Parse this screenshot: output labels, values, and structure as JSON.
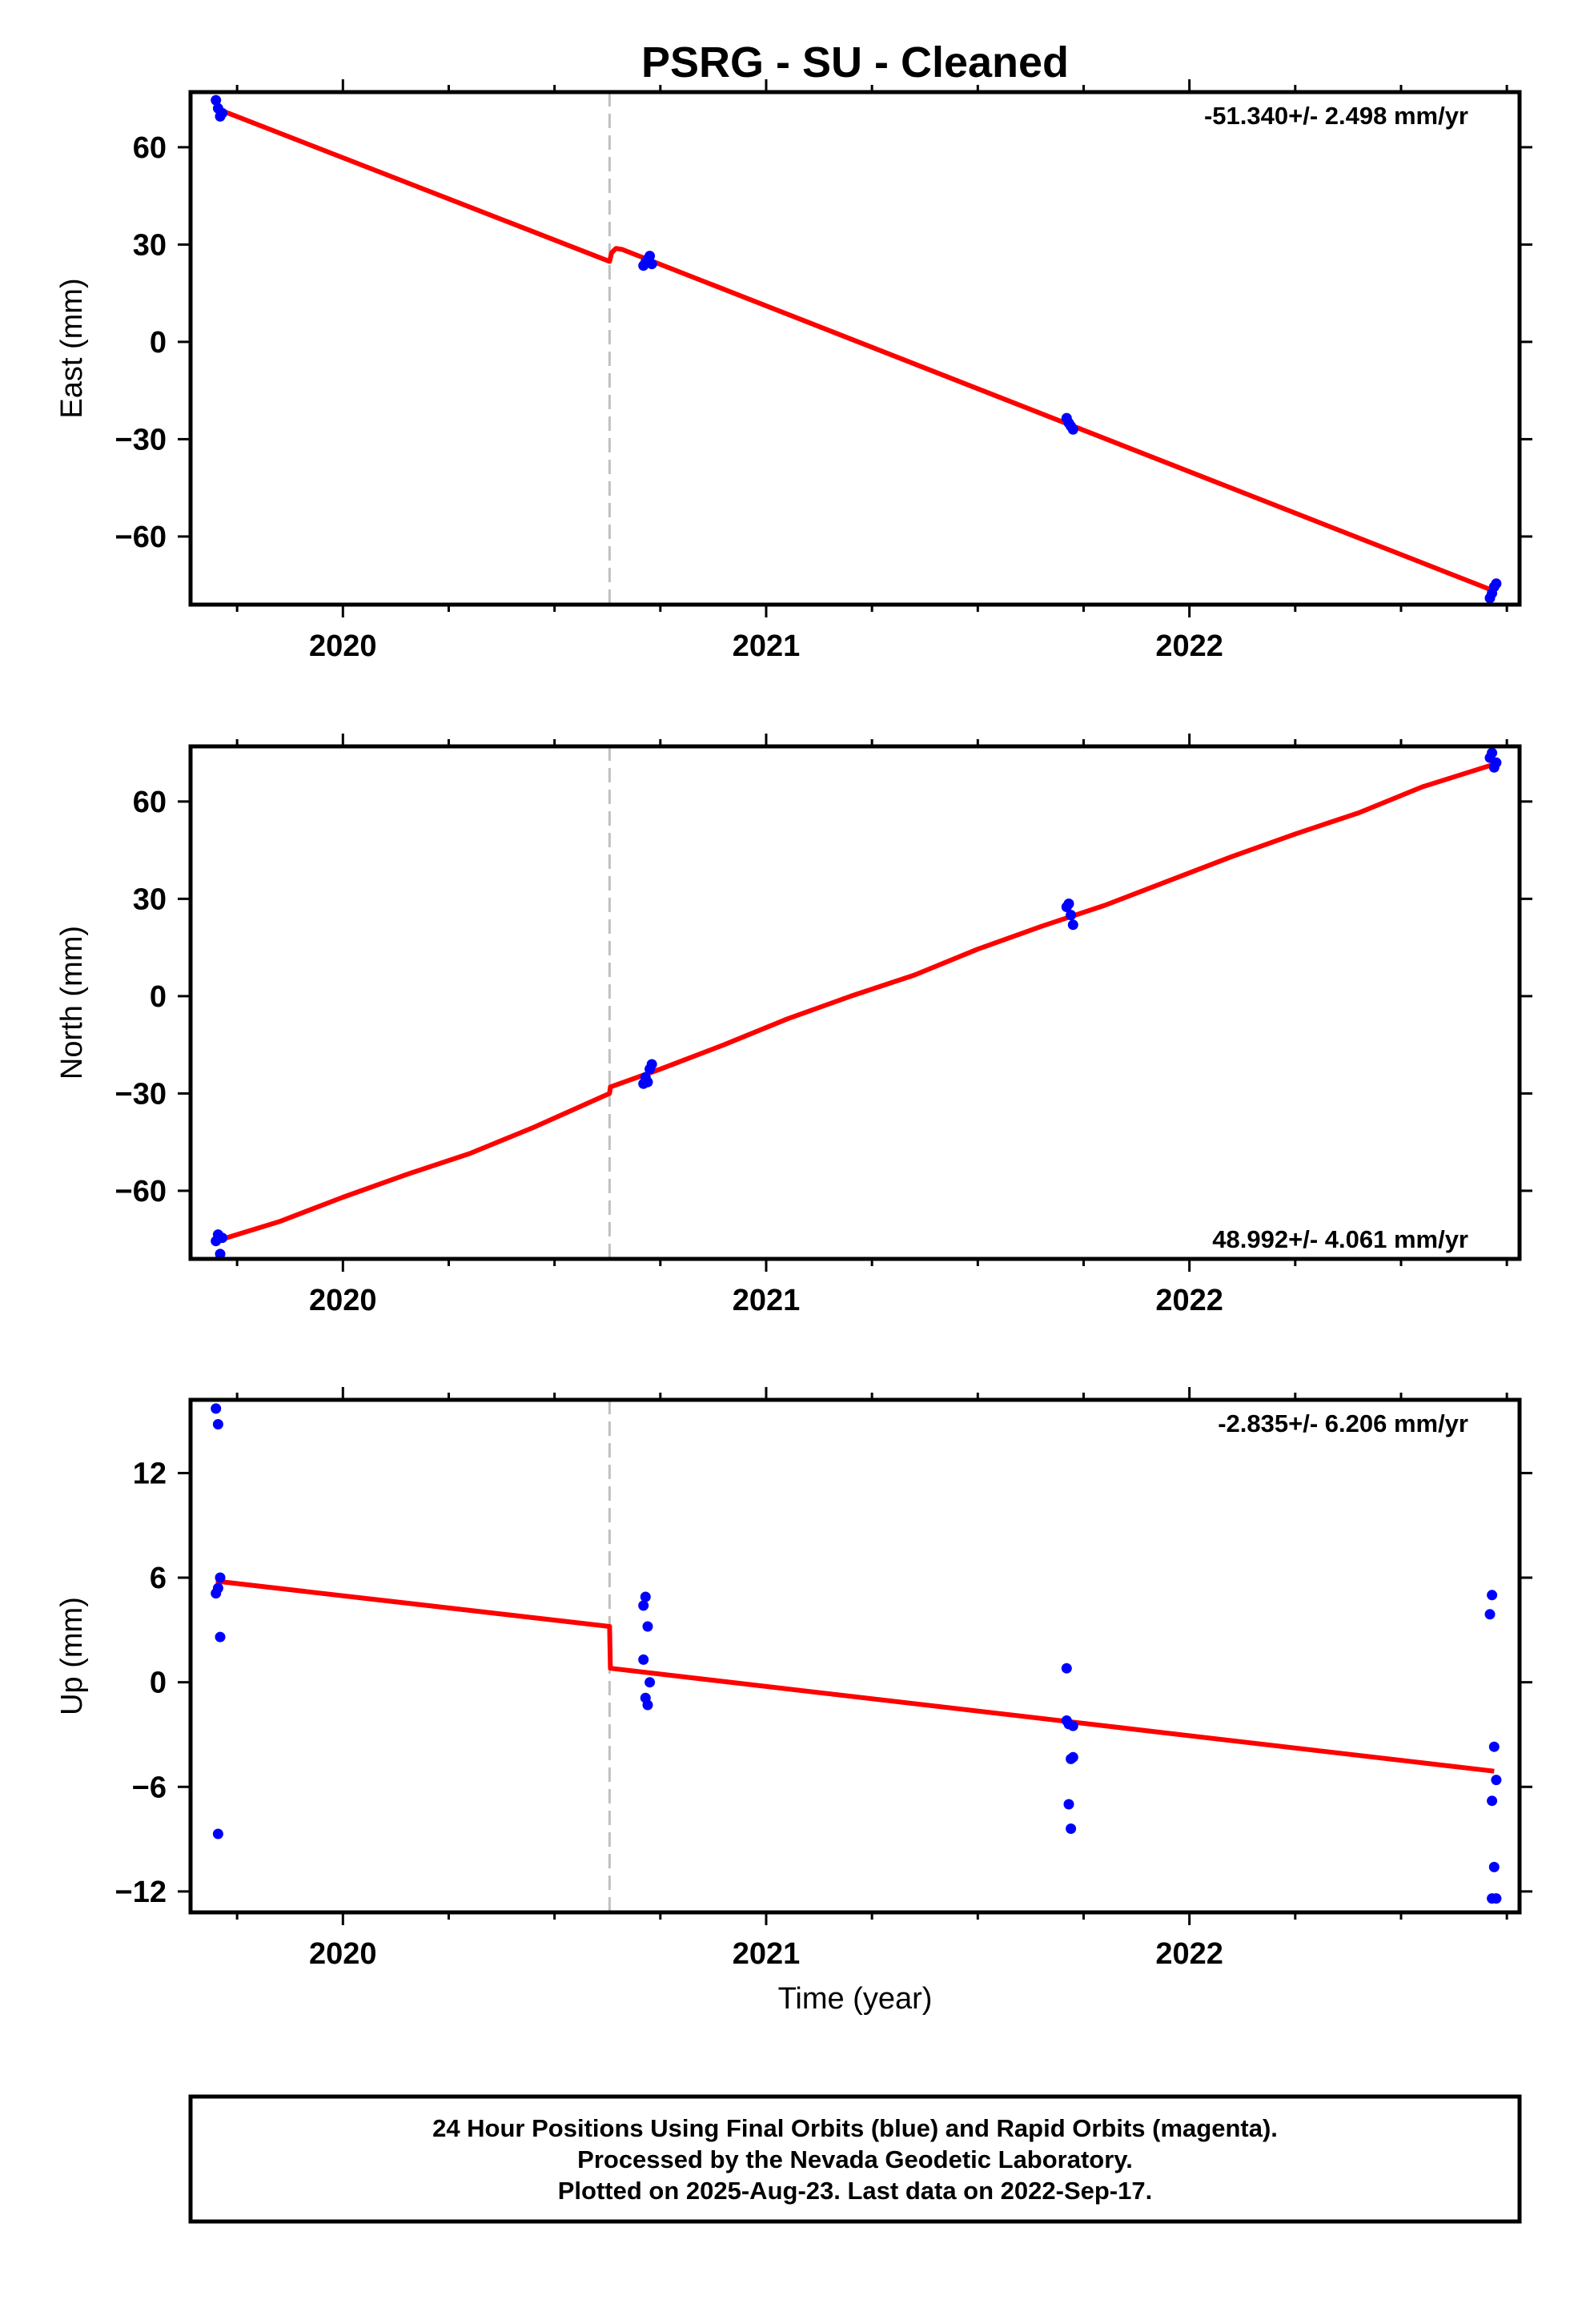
{
  "title": "PSRG  - SU - Cleaned",
  "xlabel": "Time (year)",
  "footer": [
    "24 Hour Positions Using Final Orbits (blue) and Rapid Orbits (magenta).",
    "Processed by the Nevada Geodetic Laboratory.",
    "Plotted on 2025-Aug-23. Last data on 2022-Sep-17."
  ],
  "colors": {
    "data_points": "#0000ff",
    "model_line": "#ff0000",
    "offset_line": "#c0c0c0",
    "frame": "#000000"
  },
  "chart_data": [
    {
      "type": "scatter",
      "ylabel": "East (mm)",
      "rate_label": "-51.340+/- 2.498 mm/yr",
      "rate_position": "top-right",
      "xlim": [
        2019.64,
        2022.78
      ],
      "ylim": [
        -81,
        77
      ],
      "x_ticks": [
        2020,
        2021,
        2022
      ],
      "x_tick_labels": [
        "2020",
        "2021",
        "2022"
      ],
      "y_ticks": [
        -60,
        -30,
        0,
        30,
        60
      ],
      "y_tick_labels": [
        "−60",
        "−30",
        "0",
        "30",
        "60"
      ],
      "offset_epoch": 2020.63,
      "series": [
        {
          "kind": "points",
          "x": [
            2019.7,
            2019.705,
            2019.71,
            2019.715,
            2020.71,
            2020.715,
            2020.72,
            2020.725,
            2020.73,
            2021.71,
            2021.715,
            2021.72,
            2021.725,
            2022.71,
            2022.715,
            2022.72,
            2022.725
          ],
          "y": [
            74.5,
            72.0,
            69.5,
            70.5,
            23.5,
            24.5,
            25.5,
            26.5,
            24.0,
            -23.5,
            -25.0,
            -26.0,
            -27.0,
            -79.0,
            -77.5,
            -75.5,
            -74.5
          ]
        },
        {
          "kind": "line",
          "x": [
            2019.7,
            2020.63,
            2020.635,
            2020.645,
            2020.66,
            2022.72
          ],
          "y": [
            72.0,
            24.8,
            27.5,
            28.8,
            28.5,
            -76.8
          ]
        }
      ]
    },
    {
      "type": "scatter",
      "ylabel": "North (mm)",
      "rate_label": "48.992+/- 4.061 mm/yr",
      "rate_position": "bottom-right",
      "xlim": [
        2019.64,
        2022.78
      ],
      "ylim": [
        -81,
        77
      ],
      "x_ticks": [
        2020,
        2021,
        2022
      ],
      "x_tick_labels": [
        "2020",
        "2021",
        "2022"
      ],
      "y_ticks": [
        -60,
        -30,
        0,
        30,
        60
      ],
      "y_tick_labels": [
        "−60",
        "−30",
        "0",
        "30",
        "60"
      ],
      "offset_epoch": 2020.63,
      "series": [
        {
          "kind": "points",
          "x": [
            2019.7,
            2019.705,
            2019.71,
            2019.715,
            2020.71,
            2020.715,
            2020.72,
            2020.725,
            2020.73,
            2021.71,
            2021.715,
            2021.72,
            2021.725,
            2022.71,
            2022.715,
            2022.72,
            2022.725
          ],
          "y": [
            -75.5,
            -73.5,
            -79.5,
            -74.5,
            -27.0,
            -25.0,
            -26.5,
            -22.5,
            -21.0,
            27.5,
            28.5,
            25.0,
            22.0,
            73.5,
            75.0,
            70.5,
            72.0
          ]
        },
        {
          "kind": "line",
          "x": [
            2019.7,
            2019.85,
            2020.0,
            2020.15,
            2020.3,
            2020.45,
            2020.63,
            2020.632,
            2020.75,
            2020.9,
            2021.05,
            2021.2,
            2021.35,
            2021.5,
            2021.65,
            2021.8,
            2021.95,
            2022.1,
            2022.25,
            2022.4,
            2022.55,
            2022.72
          ],
          "y": [
            -75.5,
            -69.5,
            -62.0,
            -55.0,
            -48.5,
            -40.5,
            -30.0,
            -28.0,
            -22.5,
            -15.0,
            -7.0,
            0.0,
            6.5,
            14.5,
            21.5,
            28.0,
            35.5,
            43.0,
            50.0,
            56.5,
            64.5,
            71.5
          ]
        }
      ]
    },
    {
      "type": "scatter",
      "ylabel": "Up (mm)",
      "rate_label": "-2.835+/- 6.206 mm/yr",
      "rate_position": "top-right",
      "xlim": [
        2019.64,
        2022.78
      ],
      "ylim": [
        -13.2,
        16.2
      ],
      "x_ticks": [
        2020,
        2021,
        2022
      ],
      "x_tick_labels": [
        "2020",
        "2021",
        "2022"
      ],
      "y_ticks": [
        -12,
        -6,
        0,
        6,
        12
      ],
      "y_tick_labels": [
        "−12",
        "−6",
        "0",
        "6",
        "12"
      ],
      "offset_epoch": 2020.63,
      "series": [
        {
          "kind": "points",
          "x": [
            2019.7,
            2019.705,
            2019.71,
            2019.7,
            2019.705,
            2019.71,
            2019.705,
            2020.71,
            2020.715,
            2020.72,
            2020.71,
            2020.715,
            2020.72,
            2020.725,
            2021.71,
            2021.715,
            2021.72,
            2021.725,
            2021.715,
            2021.72,
            2021.71,
            2021.725,
            2022.71,
            2022.715,
            2022.72,
            2022.725,
            2022.715,
            2022.72,
            2022.725,
            2022.715
          ],
          "y": [
            15.7,
            14.8,
            6.0,
            5.1,
            5.4,
            2.6,
            -8.7,
            4.4,
            4.9,
            3.2,
            1.3,
            -0.9,
            -1.3,
            0.0,
            -2.2,
            -2.4,
            -4.4,
            -4.3,
            -7.0,
            -8.4,
            0.8,
            -2.5,
            3.9,
            5.0,
            -3.7,
            -5.6,
            -6.8,
            -10.6,
            -12.4,
            -12.4
          ]
        },
        {
          "kind": "line",
          "x": [
            2019.7,
            2020.63,
            2020.632,
            2022.72
          ],
          "y": [
            5.8,
            3.2,
            0.8,
            -5.1
          ]
        }
      ]
    }
  ]
}
